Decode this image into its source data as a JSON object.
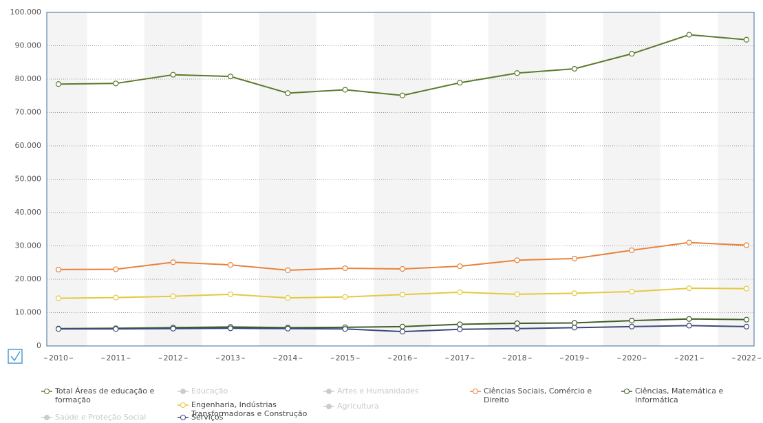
{
  "chart_data": {
    "type": "line",
    "categories": [
      "2010",
      "2011",
      "2012",
      "2013",
      "2014",
      "2015",
      "2016",
      "2017",
      "2018",
      "2019",
      "2020",
      "2021",
      "2022"
    ],
    "ylim": [
      0,
      100000
    ],
    "yticks": [
      0,
      {
        "value": 10000,
        "label": "10.000"
      },
      {
        "value": 20000,
        "label": "20.000"
      },
      {
        "value": 30000,
        "label": "30.000"
      },
      {
        "value": 40000,
        "label": "40.000"
      },
      {
        "value": 50000,
        "label": "50.000"
      },
      {
        "value": 60000,
        "label": "60.000"
      },
      {
        "value": 70000,
        "label": "70.000"
      },
      {
        "value": 80000,
        "label": "80.000"
      },
      {
        "value": 90000,
        "label": "90.000"
      },
      {
        "value": 100000,
        "label": "100.000"
      }
    ],
    "grid": true,
    "legend": "bottom",
    "series": [
      {
        "name": "Total Áreas de educação e formação",
        "color": "#5b7a2b",
        "visible": true,
        "values": [
          78500,
          78700,
          81300,
          80800,
          75800,
          76800,
          75100,
          78900,
          81800,
          83100,
          87600,
          93300,
          91800
        ]
      },
      {
        "name": "Educação",
        "color": "#cccccc",
        "visible": false,
        "values": [
          null,
          null,
          null,
          null,
          null,
          null,
          null,
          null,
          null,
          null,
          null,
          null,
          null
        ]
      },
      {
        "name": "Artes e Humanidades",
        "color": "#cccccc",
        "visible": false,
        "values": [
          null,
          null,
          null,
          null,
          null,
          null,
          null,
          null,
          null,
          null,
          null,
          null,
          null
        ]
      },
      {
        "name": "Ciências Sociais, Comércio e Direito",
        "color": "#e8823a",
        "visible": true,
        "values": [
          22900,
          23000,
          25100,
          24300,
          22700,
          23300,
          23100,
          23900,
          25700,
          26200,
          28700,
          31000,
          30200
        ]
      },
      {
        "name": "Ciências, Matemática e Informática",
        "color": "#3f5e2a",
        "visible": true,
        "values": [
          5200,
          5300,
          5500,
          5700,
          5500,
          5600,
          5800,
          6500,
          6800,
          6900,
          7600,
          8100,
          7900
        ]
      },
      {
        "name": "Engenharia, Indústrias Transformadoras e Construção",
        "color": "#e3c93e",
        "visible": true,
        "values": [
          14300,
          14500,
          14900,
          15500,
          14400,
          14700,
          15400,
          16100,
          15500,
          15800,
          16300,
          17300,
          17200
        ]
      },
      {
        "name": "Agricultura",
        "color": "#cccccc",
        "visible": false,
        "values": [
          null,
          null,
          null,
          null,
          null,
          null,
          null,
          null,
          null,
          null,
          null,
          null,
          null
        ]
      },
      {
        "name": "Saúde e Proteção Social",
        "color": "#cccccc",
        "visible": false,
        "values": [
          null,
          null,
          null,
          null,
          null,
          null,
          null,
          null,
          null,
          null,
          null,
          null,
          null
        ]
      },
      {
        "name": "Serviços",
        "color": "#3b4a7c",
        "visible": true,
        "values": [
          5100,
          5100,
          5200,
          5300,
          5200,
          5100,
          4300,
          5000,
          5200,
          5500,
          5800,
          6100,
          5800
        ]
      }
    ]
  }
}
